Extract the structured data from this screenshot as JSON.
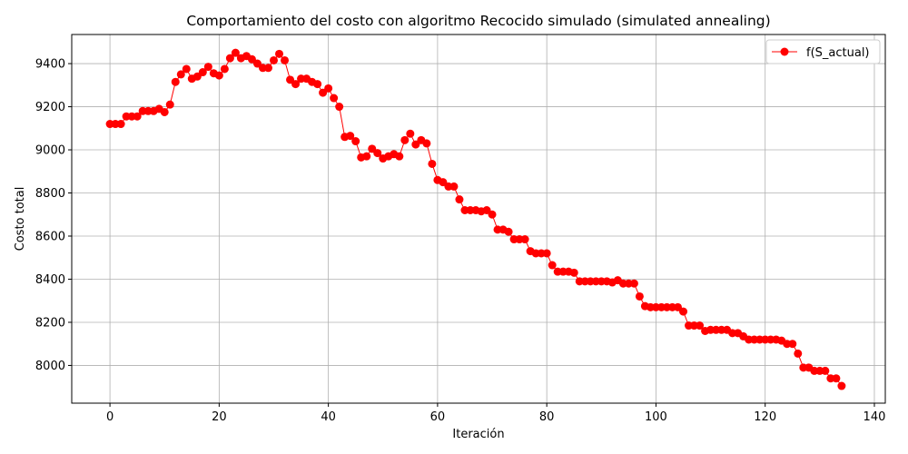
{
  "chart_data": {
    "type": "line",
    "title": "Comportamiento del costo con algoritmo Recocido simulado (simulated annealing)",
    "xlabel": "Iteración",
    "ylabel": "Costo total",
    "xlim": [
      -7,
      142
    ],
    "ylim": [
      7825,
      9535
    ],
    "xticks": [
      0,
      20,
      40,
      60,
      80,
      100,
      120,
      140
    ],
    "yticks": [
      8000,
      8200,
      8400,
      8600,
      8800,
      9000,
      9200,
      9400
    ],
    "grid": true,
    "legend_position": "top-right",
    "series": [
      {
        "name": "f(S_actual)",
        "color": "#ff0000",
        "x": [
          0,
          1,
          2,
          3,
          4,
          5,
          6,
          7,
          8,
          9,
          10,
          11,
          12,
          13,
          14,
          15,
          16,
          17,
          18,
          19,
          20,
          21,
          22,
          23,
          24,
          25,
          26,
          27,
          28,
          29,
          30,
          31,
          32,
          33,
          34,
          35,
          36,
          37,
          38,
          39,
          40,
          41,
          42,
          43,
          44,
          45,
          46,
          47,
          48,
          49,
          50,
          51,
          52,
          53,
          54,
          55,
          56,
          57,
          58,
          59,
          60,
          61,
          62,
          63,
          64,
          65,
          66,
          67,
          68,
          69,
          70,
          71,
          72,
          73,
          74,
          75,
          76,
          77,
          78,
          79,
          80,
          81,
          82,
          83,
          84,
          85,
          86,
          87,
          88,
          89,
          90,
          91,
          92,
          93,
          94,
          95,
          96,
          97,
          98,
          99,
          100,
          101,
          102,
          103,
          104,
          105,
          106,
          107,
          108,
          109,
          110,
          111,
          112,
          113,
          114,
          115,
          116,
          117,
          118,
          119,
          120,
          121,
          122,
          123,
          124,
          125,
          126,
          127,
          128,
          129,
          130,
          131,
          132,
          133,
          134
        ],
        "y": [
          9120,
          9120,
          9120,
          9155,
          9155,
          9155,
          9180,
          9180,
          9180,
          9190,
          9175,
          9210,
          9315,
          9350,
          9375,
          9330,
          9340,
          9360,
          9385,
          9355,
          9345,
          9375,
          9425,
          9450,
          9425,
          9435,
          9420,
          9400,
          9380,
          9380,
          9415,
          9445,
          9415,
          9325,
          9305,
          9330,
          9330,
          9315,
          9305,
          9265,
          9285,
          9240,
          9200,
          9060,
          9065,
          9040,
          8965,
          8970,
          9005,
          8985,
          8960,
          8970,
          8980,
          8970,
          9045,
          9075,
          9025,
          9045,
          9030,
          8935,
          8860,
          8850,
          8830,
          8830,
          8770,
          8720,
          8720,
          8720,
          8715,
          8720,
          8700,
          8630,
          8630,
          8620,
          8585,
          8585,
          8585,
          8530,
          8520,
          8520,
          8520,
          8465,
          8435,
          8435,
          8435,
          8430,
          8390,
          8390,
          8390,
          8390,
          8390,
          8390,
          8385,
          8395,
          8380,
          8380,
          8380,
          8320,
          8275,
          8270,
          8270,
          8270,
          8270,
          8270,
          8270,
          8250,
          8185,
          8185,
          8185,
          8160,
          8165,
          8165,
          8165,
          8165,
          8150,
          8150,
          8135,
          8120,
          8120,
          8120,
          8120,
          8120,
          8120,
          8115,
          8100,
          8100,
          8055,
          7990,
          7990,
          7975,
          7975,
          7975,
          7940,
          7940,
          7905
        ]
      }
    ]
  }
}
